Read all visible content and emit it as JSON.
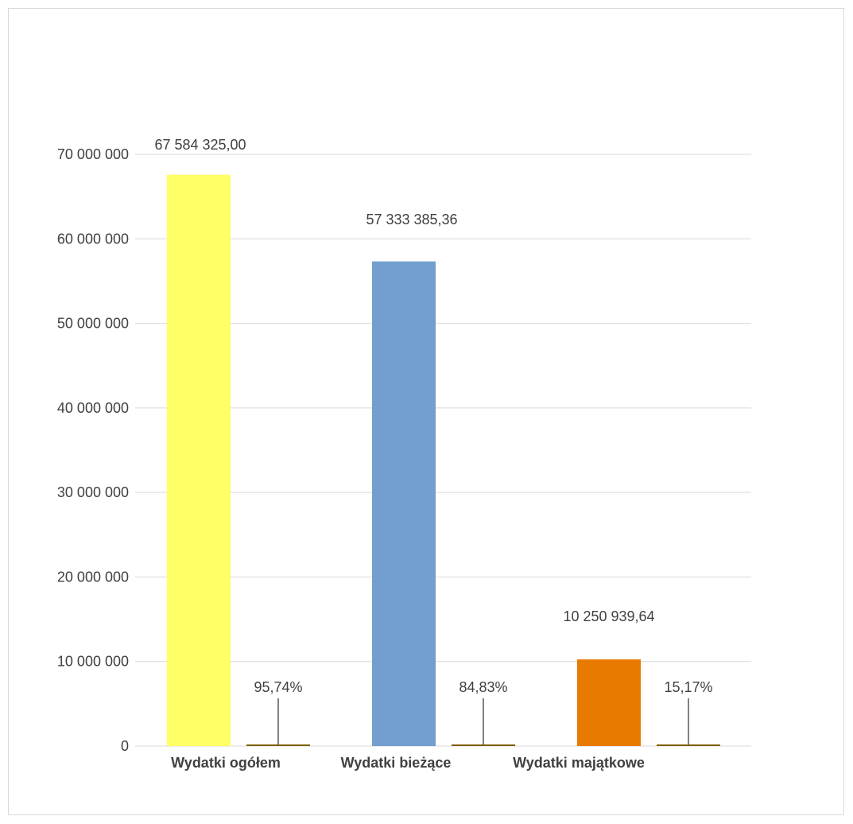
{
  "chart_data": {
    "type": "bar",
    "categories": [
      "Wydatki ogółem",
      "Wydatki bieżące",
      "Wydatki majątkowe"
    ],
    "series": [
      {
        "values": [
          67584325.0,
          57333385.36,
          10250939.64
        ],
        "labels": [
          "67 584 325,00",
          "57 333 385,36",
          "10 250 939,64"
        ],
        "colors": [
          "#ffff66",
          "#729fcf",
          "#e97a00"
        ]
      },
      {
        "values": [
          0.9574,
          0.8483,
          0.1517
        ],
        "labels": [
          "95,74%",
          "84,83%",
          "15,17%"
        ],
        "color": "#7f6000"
      }
    ],
    "yticks": [
      0,
      10000000,
      20000000,
      30000000,
      40000000,
      50000000,
      60000000,
      70000000
    ],
    "ytick_labels": [
      "0",
      "10 000 000",
      "20 000 000",
      "30 000 000",
      "40 000 000",
      "50 000 000",
      "60 000 000",
      "70 000 000"
    ],
    "ylim": [
      0,
      70000000
    ],
    "grid": true,
    "title": "",
    "xlabel": "",
    "ylabel": ""
  }
}
